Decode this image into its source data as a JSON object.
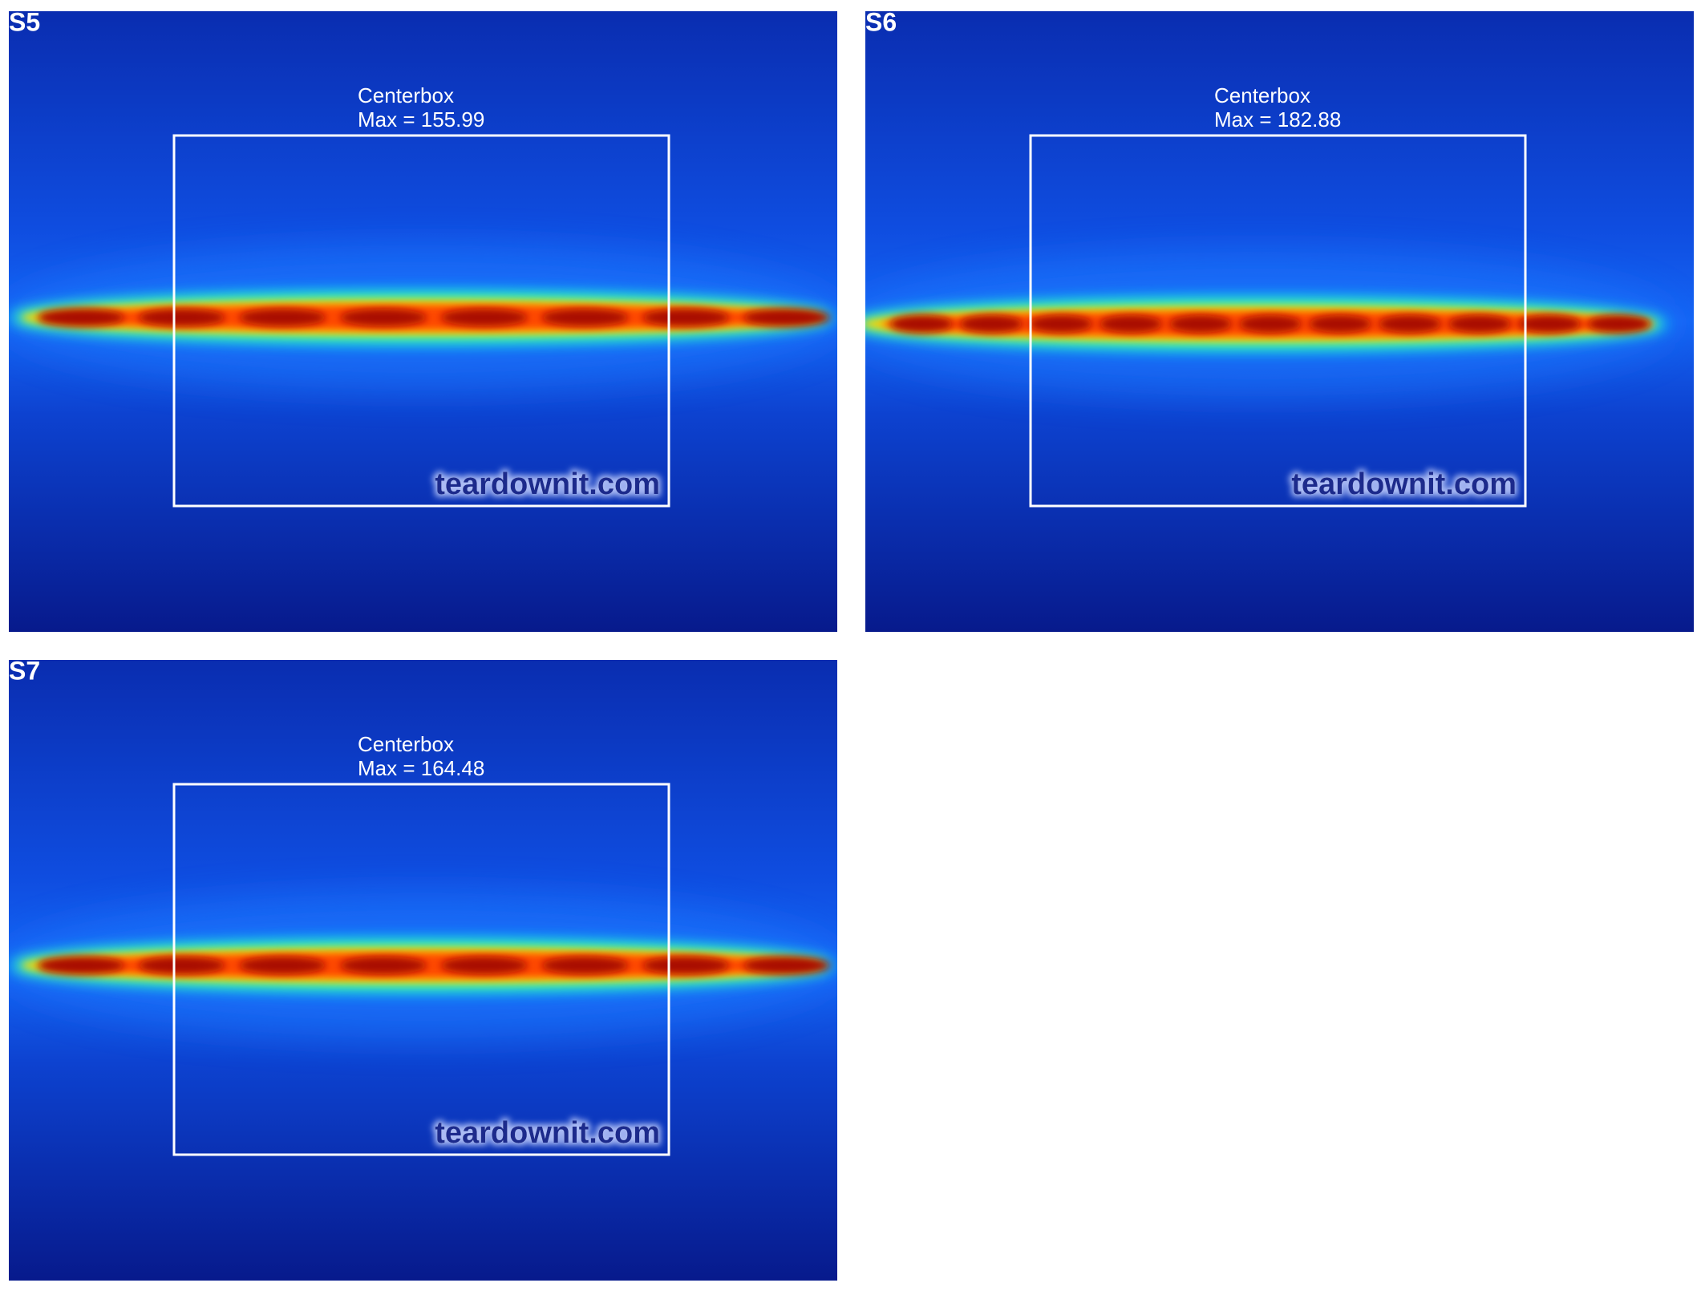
{
  "panels": [
    {
      "label": "S5",
      "box_title": "Centerbox",
      "max_text": "Max = 155.99",
      "watermark": "teardownit.com"
    },
    {
      "label": "S6",
      "box_title": "Centerbox",
      "max_text": "Max = 182.88",
      "watermark": "teardownit.com"
    },
    {
      "label": "S7",
      "box_title": "Centerbox",
      "max_text": "Max = 164.48",
      "watermark": "teardownit.com"
    }
  ]
}
